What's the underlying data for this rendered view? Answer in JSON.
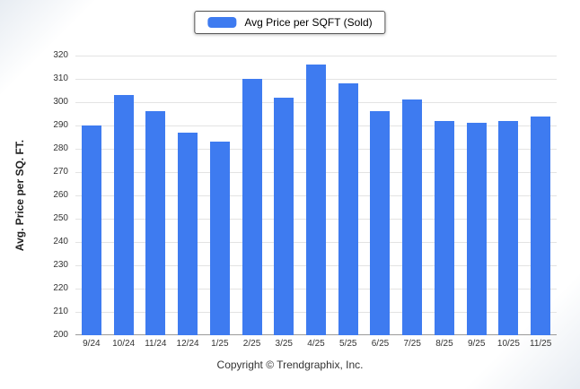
{
  "chart_data": {
    "type": "bar",
    "legend": "Avg Price per SQFT (Sold)",
    "ylabel": "Avg. Price per SQ. FT.",
    "xlabel": "",
    "footer": "Copyright © Trendgraphix, Inc.",
    "ylim": [
      200,
      320
    ],
    "ytick_step": 10,
    "grid": true,
    "legend_position": "top",
    "bar_color": "#3e7bf0",
    "categories": [
      "9/24",
      "10/24",
      "11/24",
      "12/24",
      "1/25",
      "2/25",
      "3/25",
      "4/25",
      "5/25",
      "6/25",
      "7/25",
      "8/25",
      "9/25",
      "10/25",
      "11/25"
    ],
    "values": [
      290,
      303,
      296,
      287,
      283,
      310,
      302,
      316,
      308,
      296,
      301,
      292,
      291,
      292,
      294
    ]
  }
}
